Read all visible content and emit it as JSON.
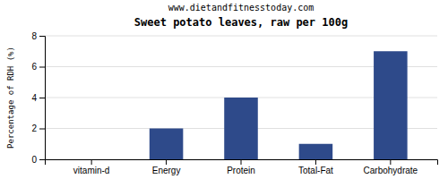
{
  "chart_data": {
    "type": "bar",
    "title": "Sweet potato leaves, raw per 100g",
    "subtitle": "www.dietandfitnesstoday.com",
    "categories": [
      "vitamin-d",
      "Energy",
      "Protein",
      "Total-Fat",
      "Carbohydrate"
    ],
    "values": [
      0,
      2,
      4,
      1,
      7
    ],
    "color": "#2e4a8a",
    "ylabel": "Percentage of RDH (%)",
    "ylim": [
      0,
      8
    ],
    "yticks": [
      0,
      2,
      4,
      6,
      8
    ],
    "grid": true
  }
}
